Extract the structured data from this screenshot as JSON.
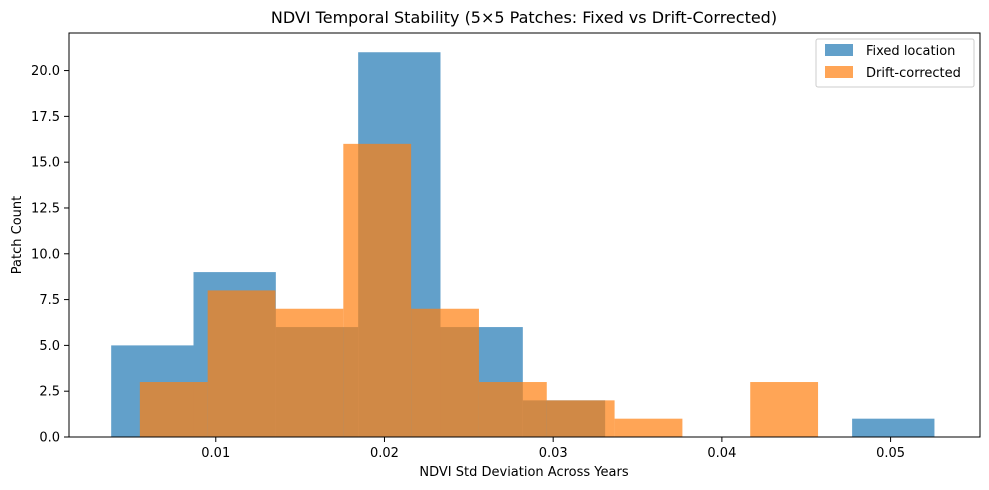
{
  "chart_data": {
    "type": "bar",
    "title": "NDVI Temporal Stability (5×5 Patches: Fixed vs Drift-Corrected)",
    "xlabel": "NDVI Std Deviation Across Years",
    "ylabel": "Patch Count",
    "xlim": [
      0.0013,
      0.0553
    ],
    "ylim": [
      0,
      22.05
    ],
    "xticks": [
      0.01,
      0.02,
      0.03,
      0.04,
      0.05
    ],
    "xtick_labels": [
      "0.01",
      "0.02",
      "0.03",
      "0.04",
      "0.05"
    ],
    "yticks": [
      0,
      2.5,
      5,
      7.5,
      10,
      12.5,
      15,
      17.5,
      20
    ],
    "ytick_labels": [
      "0.0",
      "2.5",
      "5.0",
      "7.5",
      "10.0",
      "12.5",
      "15.0",
      "17.5",
      "20.0"
    ],
    "grid": false,
    "legend_position": "top-right",
    "series": [
      {
        "name": "Fixed location",
        "color": "#1f77b4",
        "opacity": 0.7,
        "bin_edges": [
          0.0038,
          0.00868,
          0.01356,
          0.01844,
          0.02332,
          0.0282,
          0.03308,
          0.03796,
          0.04284,
          0.04772,
          0.0526
        ],
        "counts": [
          5,
          9,
          6,
          21,
          6,
          2,
          0,
          0,
          0,
          1
        ]
      },
      {
        "name": "Drift-corrected",
        "color": "#ff7f0e",
        "opacity": 0.7,
        "bin_edges": [
          0.0055,
          0.00952,
          0.01354,
          0.01756,
          0.02158,
          0.0256,
          0.02962,
          0.03364,
          0.03766,
          0.04168,
          0.0457
        ],
        "counts": [
          3,
          8,
          7,
          16,
          7,
          3,
          2,
          1,
          0,
          3
        ]
      }
    ]
  }
}
